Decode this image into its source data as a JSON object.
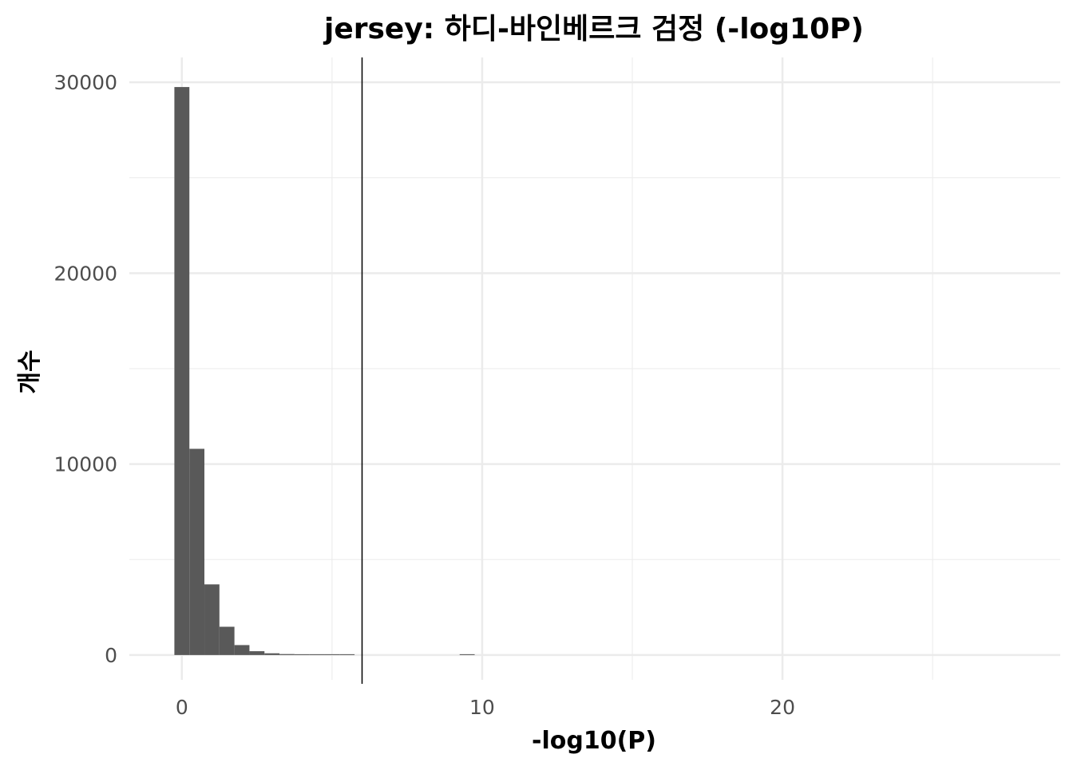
{
  "chart_data": {
    "type": "bar",
    "title": "jersey: 하디-바인베르크 검정 (-log10P)",
    "xlabel": "-log10(P)",
    "ylabel": "개수",
    "xlim": [
      -1.75,
      29.25
    ],
    "ylim": [
      -1300,
      31300
    ],
    "x_ticks": [
      0,
      10,
      20
    ],
    "x_tick_labels": [
      "0",
      "10",
      "20"
    ],
    "y_ticks": [
      0,
      10000,
      20000,
      30000
    ],
    "y_tick_labels": [
      "0",
      "10000",
      "20000",
      "30000"
    ],
    "grid": true,
    "bin_width": 0.5,
    "bins": [
      {
        "x": 0.0,
        "count": 29750
      },
      {
        "x": 0.5,
        "count": 10800
      },
      {
        "x": 1.0,
        "count": 3700
      },
      {
        "x": 1.5,
        "count": 1480
      },
      {
        "x": 2.0,
        "count": 520
      },
      {
        "x": 2.5,
        "count": 200
      },
      {
        "x": 3.0,
        "count": 90
      },
      {
        "x": 3.5,
        "count": 50
      },
      {
        "x": 4.0,
        "count": 30
      },
      {
        "x": 4.5,
        "count": 20
      },
      {
        "x": 5.0,
        "count": 12
      },
      {
        "x": 5.5,
        "count": 8
      },
      {
        "x": 9.5,
        "count": 10
      }
    ],
    "threshold_x": 6,
    "bar_color": "#595959",
    "threshold_color": "#000000"
  }
}
